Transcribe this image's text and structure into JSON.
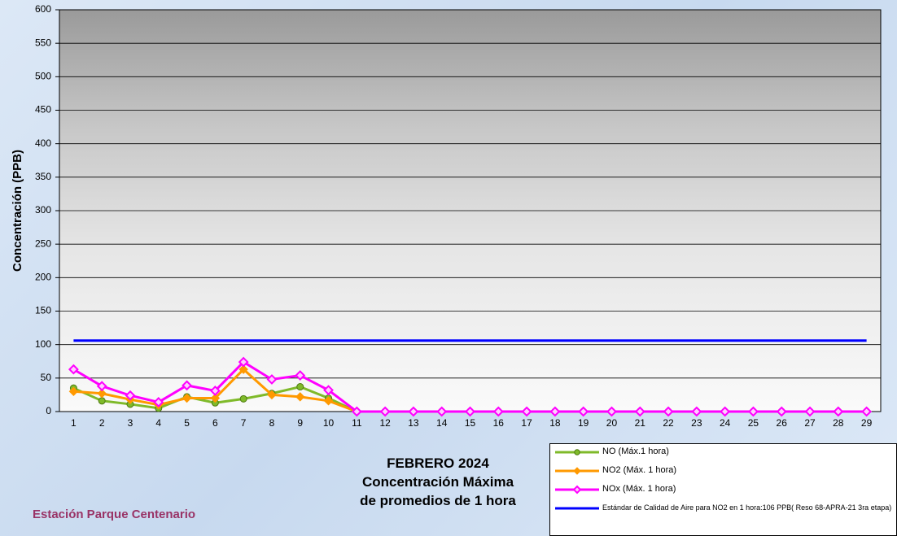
{
  "chart_data": {
    "type": "line",
    "title": [
      "FEBRERO 2024",
      "Concentración Máxima",
      "de promedios de 1 hora"
    ],
    "subtitle": "Estación Parque Centenario",
    "y_label": "Concentración  (PPB)",
    "categories": [
      "1",
      "2",
      "3",
      "4",
      "5",
      "6",
      "7",
      "8",
      "9",
      "10",
      "11",
      "12",
      "13",
      "14",
      "15",
      "16",
      "17",
      "18",
      "19",
      "20",
      "21",
      "22",
      "23",
      "24",
      "25",
      "26",
      "27",
      "28",
      "29"
    ],
    "series": [
      {
        "name": "NO (Máx.1 hora)",
        "color": "#7fba2a",
        "marker": "circle",
        "values": [
          35,
          16,
          11,
          5,
          22,
          13,
          19,
          27,
          37,
          20,
          0,
          0,
          0,
          0,
          0,
          0,
          0,
          0,
          0,
          0,
          0,
          0,
          0,
          0,
          0,
          0,
          0,
          0,
          0
        ]
      },
      {
        "name": "NO2 (Máx. 1 hora)",
        "color": "#ff9900",
        "marker": "diamond",
        "values": [
          30,
          27,
          18,
          10,
          20,
          20,
          63,
          25,
          22,
          16,
          0,
          0,
          0,
          0,
          0,
          0,
          0,
          0,
          0,
          0,
          0,
          0,
          0,
          0,
          0,
          0,
          0,
          0,
          0
        ]
      },
      {
        "name": "NOx (Máx. 1 hora)",
        "color": "#ff00ff",
        "marker": "hollow-diamond",
        "values": [
          63,
          38,
          24,
          14,
          39,
          31,
          74,
          48,
          54,
          32,
          0,
          0,
          0,
          0,
          0,
          0,
          0,
          0,
          0,
          0,
          0,
          0,
          0,
          0,
          0,
          0,
          0,
          0,
          0
        ]
      },
      {
        "name": "Estándar de Calidad de Aire para NO2 en 1 hora:106 PPB( Reso 68-APRA-21 3ra etapa)",
        "color": "#0000ff",
        "marker": "none",
        "values": [
          106,
          106,
          106,
          106,
          106,
          106,
          106,
          106,
          106,
          106,
          106,
          106,
          106,
          106,
          106,
          106,
          106,
          106,
          106,
          106,
          106,
          106,
          106,
          106,
          106,
          106,
          106,
          106,
          106
        ]
      }
    ],
    "ylim": [
      0,
      600
    ],
    "yticks": [
      0,
      50,
      100,
      150,
      200,
      250,
      300,
      350,
      400,
      450,
      500,
      550,
      600
    ],
    "grid": true
  }
}
